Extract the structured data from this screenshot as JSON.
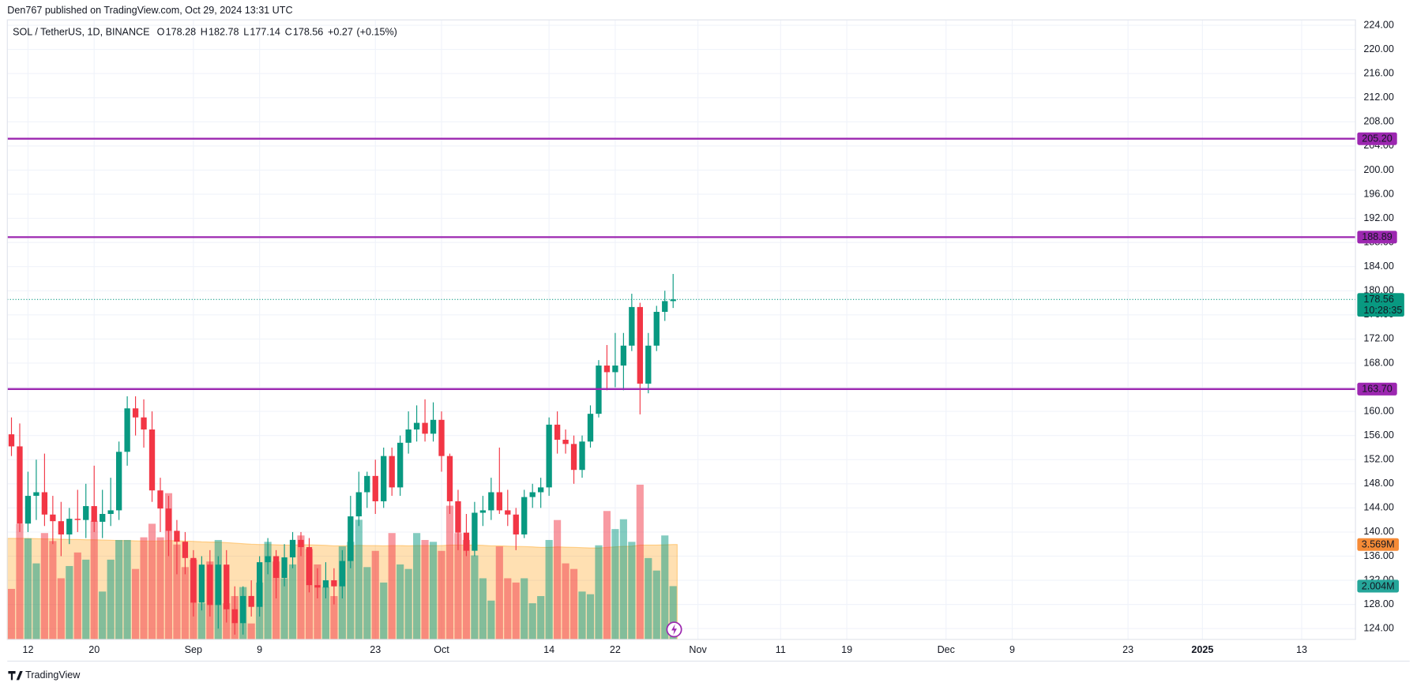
{
  "chart_data": {
    "type": "candlestick",
    "caption": "Den767 published on TradingView.com, Oct 29, 2024 13:31 UTC",
    "symbol": "SOL / TetherUS, 1D, BINANCE",
    "legend": [
      {
        "key": "O",
        "value": 178.28
      },
      {
        "key": "H",
        "value": 182.78
      },
      {
        "key": "L",
        "value": 177.14
      },
      {
        "key": "C",
        "value": 178.56
      }
    ],
    "change": {
      "value": 0.27,
      "label": "+0.27"
    },
    "change_pct": {
      "value": 0.15,
      "label": "(+0.15%)"
    },
    "x": [
      "2024-08-10",
      "2024-08-11",
      "2024-08-12",
      "2024-08-13",
      "2024-08-14",
      "2024-08-15",
      "2024-08-16",
      "2024-08-17",
      "2024-08-18",
      "2024-08-19",
      "2024-08-20",
      "2024-08-21",
      "2024-08-22",
      "2024-08-23",
      "2024-08-24",
      "2024-08-25",
      "2024-08-26",
      "2024-08-27",
      "2024-08-28",
      "2024-08-29",
      "2024-08-30",
      "2024-08-31",
      "2024-09-01",
      "2024-09-02",
      "2024-09-03",
      "2024-09-04",
      "2024-09-05",
      "2024-09-06",
      "2024-09-07",
      "2024-09-08",
      "2024-09-09",
      "2024-09-10",
      "2024-09-11",
      "2024-09-12",
      "2024-09-13",
      "2024-09-14",
      "2024-09-15",
      "2024-09-16",
      "2024-09-17",
      "2024-09-18",
      "2024-09-19",
      "2024-09-20",
      "2024-09-21",
      "2024-09-22",
      "2024-09-23",
      "2024-09-24",
      "2024-09-25",
      "2024-09-26",
      "2024-09-27",
      "2024-09-28",
      "2024-09-29",
      "2024-09-30",
      "2024-10-01",
      "2024-10-02",
      "2024-10-03",
      "2024-10-04",
      "2024-10-05",
      "2024-10-06",
      "2024-10-07",
      "2024-10-08",
      "2024-10-09",
      "2024-10-10",
      "2024-10-11",
      "2024-10-12",
      "2024-10-13",
      "2024-10-14",
      "2024-10-15",
      "2024-10-16",
      "2024-10-17",
      "2024-10-18",
      "2024-10-19",
      "2024-10-20",
      "2024-10-21",
      "2024-10-22",
      "2024-10-23",
      "2024-10-24",
      "2024-10-25",
      "2024-10-26",
      "2024-10-27",
      "2024-10-28",
      "2024-10-29"
    ],
    "open": [
      156.2,
      154.2,
      141.4,
      146.0,
      146.6,
      142.9,
      141.8,
      139.6,
      142.2,
      142.0,
      144.3,
      141.7,
      143.0,
      143.6,
      153.3,
      160.5,
      159.0,
      157.0,
      146.9,
      143.9,
      140.2,
      138.4,
      135.7,
      128.3,
      134.6,
      127.9,
      134.6,
      127.2,
      124.9,
      129.4,
      127.6,
      135.0,
      136.0,
      132.4,
      135.8,
      138.7,
      137.5,
      131.2,
      130.8,
      132.0,
      131.0,
      135.2,
      142.6,
      146.6,
      149.3,
      145.1,
      152.6,
      147.4,
      154.8,
      157.0,
      158.1,
      156.3,
      158.6,
      152.6,
      145.1,
      139.9,
      136.9,
      143.2,
      143.6,
      146.6,
      143.6,
      142.9,
      139.6,
      145.8,
      146.6,
      147.4,
      157.8,
      155.3,
      154.6,
      150.3,
      155.0,
      159.6,
      167.6,
      166.5,
      167.6,
      170.9,
      177.3,
      164.6,
      170.9,
      176.5,
      178.28
    ],
    "high": [
      159,
      158,
      150,
      152,
      153,
      146,
      145,
      144,
      147,
      148,
      151,
      147,
      149,
      155,
      162.5,
      162.5,
      162,
      160,
      149,
      146,
      142,
      140,
      137,
      136,
      137,
      136,
      137,
      131,
      131,
      132,
      136,
      139,
      137,
      138,
      140,
      140,
      139,
      134,
      135,
      134,
      137,
      146,
      150,
      150,
      152,
      154,
      154,
      156,
      160,
      161,
      162,
      161.5,
      160,
      153,
      147,
      143,
      145,
      146,
      149,
      154,
      147,
      144,
      147,
      148,
      149,
      159,
      160,
      157,
      156,
      156,
      161,
      168.5,
      171,
      173,
      173,
      179.5,
      178,
      173,
      177.5,
      180,
      182.78
    ],
    "low": [
      152.6,
      140,
      140,
      142,
      141,
      138,
      136,
      138,
      140,
      139,
      140,
      139,
      141,
      142,
      151,
      156,
      154,
      145,
      140,
      136,
      133,
      133,
      126,
      127,
      126,
      124,
      125,
      123,
      123,
      126,
      126,
      133,
      129,
      131,
      134,
      136,
      130,
      129,
      129,
      128,
      129,
      134,
      141,
      144,
      143,
      144,
      146,
      146,
      153,
      155,
      155,
      155,
      150,
      143,
      137,
      136,
      136,
      141,
      142,
      143,
      141,
      137,
      139,
      144,
      144,
      146,
      153,
      153,
      148,
      149,
      154,
      159,
      163.5,
      164,
      163.5,
      170,
      159.5,
      163,
      170,
      175,
      177.14
    ],
    "close": [
      154.2,
      141.4,
      146.0,
      146.6,
      142.9,
      141.8,
      139.6,
      142.2,
      142.0,
      144.3,
      141.7,
      143.0,
      143.6,
      153.3,
      160.5,
      159.0,
      157.0,
      146.9,
      143.9,
      140.2,
      138.4,
      135.7,
      128.3,
      134.6,
      127.9,
      134.6,
      127.2,
      124.9,
      129.4,
      127.6,
      135.0,
      136.0,
      132.4,
      135.8,
      138.7,
      137.5,
      131.2,
      130.8,
      132.0,
      131.0,
      135.2,
      142.6,
      146.6,
      149.3,
      145.1,
      152.6,
      147.4,
      154.8,
      157.0,
      158.1,
      156.3,
      158.6,
      152.6,
      145.1,
      139.9,
      136.9,
      143.2,
      143.6,
      146.6,
      143.6,
      142.9,
      139.6,
      145.8,
      146.6,
      147.4,
      157.8,
      155.3,
      154.6,
      150.3,
      155.0,
      159.6,
      167.6,
      166.5,
      167.6,
      170.9,
      177.3,
      164.6,
      170.9,
      176.5,
      178.28,
      178.56
    ],
    "volume": [
      1.9,
      4.35,
      3.8,
      2.86,
      4.0,
      3.7,
      2.3,
      2.76,
      3.27,
      3.0,
      4.46,
      1.8,
      3.0,
      3.74,
      3.74,
      2.65,
      3.84,
      4.35,
      3.84,
      5.5,
      3.57,
      2.72,
      3.0,
      1.36,
      2.93,
      3.74,
      1.36,
      1.63,
      1.97,
      0.6,
      2.14,
      3.67,
      2.93,
      2.3,
      2.82,
      3.91,
      3.4,
      2.82,
      1.97,
      1.63,
      3.5,
      3.67,
      4.5,
      2.72,
      3.33,
      2.14,
      4.0,
      2.82,
      2.65,
      4.0,
      3.74,
      3.67,
      3.33,
      5.03,
      4.0,
      3.74,
      3.16,
      2.3,
      1.46,
      3.5,
      2.3,
      2.14,
      2.3,
      1.36,
      1.63,
      3.74,
      4.49,
      2.86,
      2.65,
      1.8,
      1.7,
      3.54,
      4.83,
      4.15,
      4.52,
      3.67,
      5.82,
      3.06,
      2.59,
      3.91,
      2.004
    ],
    "volume_ma": [
      3.8,
      3.8,
      3.8,
      3.79,
      3.78,
      3.78,
      3.77,
      3.76,
      3.76,
      3.75,
      3.75,
      3.74,
      3.73,
      3.72,
      3.72,
      3.71,
      3.7,
      3.7,
      3.7,
      3.72,
      3.71,
      3.7,
      3.69,
      3.67,
      3.66,
      3.66,
      3.64,
      3.62,
      3.6,
      3.58,
      3.57,
      3.57,
      3.56,
      3.55,
      3.55,
      3.56,
      3.56,
      3.55,
      3.54,
      3.52,
      3.52,
      3.52,
      3.54,
      3.53,
      3.53,
      3.52,
      3.53,
      3.53,
      3.52,
      3.53,
      3.53,
      3.53,
      3.53,
      3.55,
      3.55,
      3.55,
      3.55,
      3.54,
      3.52,
      3.52,
      3.51,
      3.5,
      3.49,
      3.48,
      3.46,
      3.46,
      3.48,
      3.47,
      3.46,
      3.45,
      3.44,
      3.44,
      3.46,
      3.48,
      3.5,
      3.51,
      3.55,
      3.55,
      3.55,
      3.56,
      3.569
    ],
    "up_color": "#089981",
    "down_color": "#f23645",
    "ma_color": "#ff9800",
    "levels": [
      {
        "value": 205.2,
        "label": "205.20"
      },
      {
        "value": 188.89,
        "label": "188.89"
      },
      {
        "value": 163.7,
        "label": "163.70"
      }
    ],
    "level_color": "#9c27b0",
    "last_price": 178.56,
    "countdown": "10:28:35",
    "volume_ma_label": {
      "value": 3.569,
      "label": "3.569M"
    },
    "volume_label": {
      "value": 2.004,
      "label": "2.004M"
    },
    "ylim": [
      122.2,
      224.9
    ],
    "yticks": [
      {
        "value": 124,
        "label": "124.00"
      },
      {
        "value": 128,
        "label": "128.00"
      },
      {
        "value": 132,
        "label": "132.00"
      },
      {
        "value": 136,
        "label": "136.00"
      },
      {
        "value": 140,
        "label": "140.00"
      },
      {
        "value": 144,
        "label": "144.00"
      },
      {
        "value": 148,
        "label": "148.00"
      },
      {
        "value": 152,
        "label": "152.00"
      },
      {
        "value": 156,
        "label": "156.00"
      },
      {
        "value": 160,
        "label": "160.00"
      },
      {
        "value": 164,
        "label": "164.00"
      },
      {
        "value": 168,
        "label": "168.00"
      },
      {
        "value": 172,
        "label": "172.00"
      },
      {
        "value": 176,
        "label": "176.00"
      },
      {
        "value": 180,
        "label": "180.00"
      },
      {
        "value": 184,
        "label": "184.00"
      },
      {
        "value": 188,
        "label": "188.00"
      },
      {
        "value": 192,
        "label": "192.00"
      },
      {
        "value": 196,
        "label": "196.00"
      },
      {
        "value": 200,
        "label": "200.00"
      },
      {
        "value": 204,
        "label": "204.00"
      },
      {
        "value": 208,
        "label": "208.00"
      },
      {
        "value": 212,
        "label": "212.00"
      },
      {
        "value": 216,
        "label": "216.00"
      },
      {
        "value": 220,
        "label": "220.00"
      },
      {
        "value": 224,
        "label": "224.00"
      }
    ],
    "xlim": [
      "2024-08-10",
      "2025-01-20"
    ],
    "xticks": [
      {
        "value": "2024-08-12",
        "label": "12"
      },
      {
        "value": "2024-08-20",
        "label": "20"
      },
      {
        "value": "2024-09-01",
        "label": "Sep"
      },
      {
        "value": "2024-09-09",
        "label": "9"
      },
      {
        "value": "2024-09-23",
        "label": "23"
      },
      {
        "value": "2024-10-01",
        "label": "Oct"
      },
      {
        "value": "2024-10-14",
        "label": "14"
      },
      {
        "value": "2024-10-22",
        "label": "22"
      },
      {
        "value": "2024-11-01",
        "label": "Nov"
      },
      {
        "value": "2024-11-11",
        "label": "11"
      },
      {
        "value": "2024-11-19",
        "label": "19"
      },
      {
        "value": "2024-12-01",
        "label": "Dec"
      },
      {
        "value": "2024-12-09",
        "label": "9"
      },
      {
        "value": "2024-12-23",
        "label": "23"
      },
      {
        "value": "2025-01-01",
        "label": "2025"
      },
      {
        "value": "2025-01-13",
        "label": "13"
      }
    ],
    "vlim": [
      0,
      23.3
    ],
    "grid": true,
    "footer": "TradingView"
  }
}
